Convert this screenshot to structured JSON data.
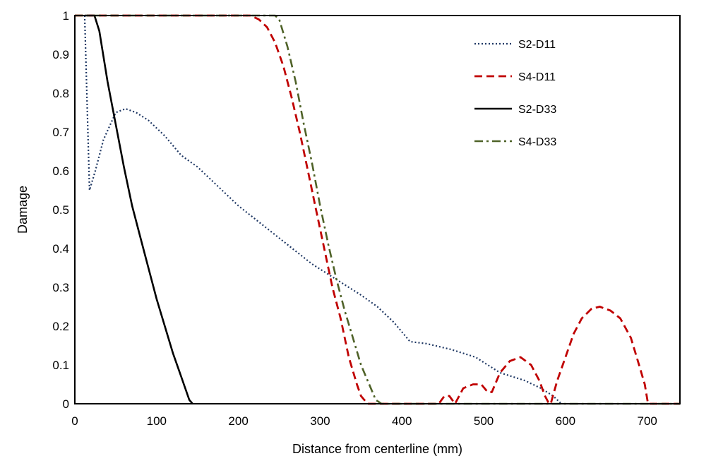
{
  "chart_data": {
    "type": "line",
    "title": "",
    "xlabel": "Distance from centerline (mm)",
    "ylabel": "Damage",
    "xlim": [
      0,
      740
    ],
    "ylim": [
      0,
      1
    ],
    "xticks": [
      0,
      100,
      200,
      300,
      400,
      500,
      600,
      700
    ],
    "yticks": [
      0,
      0.1,
      0.2,
      0.3,
      0.4,
      0.5,
      0.6,
      0.7,
      0.8,
      0.9,
      1
    ],
    "grid": false,
    "legend_position": "top-right",
    "series": [
      {
        "name": "S2-D11",
        "color": "#1f3864",
        "dash": "dotted",
        "points": [
          [
            12,
            1
          ],
          [
            18,
            0.55
          ],
          [
            25,
            0.6
          ],
          [
            35,
            0.68
          ],
          [
            50,
            0.75
          ],
          [
            62,
            0.76
          ],
          [
            75,
            0.75
          ],
          [
            90,
            0.73
          ],
          [
            110,
            0.69
          ],
          [
            130,
            0.64
          ],
          [
            150,
            0.61
          ],
          [
            175,
            0.56
          ],
          [
            200,
            0.51
          ],
          [
            230,
            0.46
          ],
          [
            260,
            0.41
          ],
          [
            290,
            0.36
          ],
          [
            320,
            0.32
          ],
          [
            350,
            0.28
          ],
          [
            370,
            0.25
          ],
          [
            390,
            0.21
          ],
          [
            410,
            0.16
          ],
          [
            430,
            0.155
          ],
          [
            460,
            0.14
          ],
          [
            490,
            0.12
          ],
          [
            520,
            0.08
          ],
          [
            550,
            0.06
          ],
          [
            570,
            0.04
          ],
          [
            585,
            0.02
          ],
          [
            595,
            0
          ]
        ]
      },
      {
        "name": "S4-D11",
        "color": "#c00000",
        "dash": "dashed",
        "points": [
          [
            0,
            1
          ],
          [
            215,
            1
          ],
          [
            225,
            0.99
          ],
          [
            235,
            0.97
          ],
          [
            245,
            0.93
          ],
          [
            255,
            0.87
          ],
          [
            265,
            0.79
          ],
          [
            275,
            0.7
          ],
          [
            285,
            0.6
          ],
          [
            295,
            0.5
          ],
          [
            305,
            0.4
          ],
          [
            315,
            0.3
          ],
          [
            325,
            0.22
          ],
          [
            335,
            0.12
          ],
          [
            345,
            0.05
          ],
          [
            350,
            0.02
          ],
          [
            358,
            0
          ],
          [
            445,
            0
          ],
          [
            452,
            0.02
          ],
          [
            458,
            0.02
          ],
          [
            465,
            0
          ],
          [
            475,
            0.04
          ],
          [
            487,
            0.05
          ],
          [
            497,
            0.05
          ],
          [
            505,
            0.03
          ],
          [
            510,
            0.03
          ],
          [
            520,
            0.08
          ],
          [
            532,
            0.11
          ],
          [
            545,
            0.12
          ],
          [
            558,
            0.1
          ],
          [
            568,
            0.06
          ],
          [
            575,
            0.02
          ],
          [
            580,
            0
          ],
          [
            582,
            0
          ],
          [
            590,
            0.06
          ],
          [
            600,
            0.12
          ],
          [
            610,
            0.18
          ],
          [
            620,
            0.22
          ],
          [
            632,
            0.245
          ],
          [
            642,
            0.25
          ],
          [
            655,
            0.24
          ],
          [
            667,
            0.22
          ],
          [
            680,
            0.17
          ],
          [
            690,
            0.1
          ],
          [
            697,
            0.05
          ],
          [
            701,
            0
          ],
          [
            740,
            0
          ]
        ]
      },
      {
        "name": "S2-D33",
        "color": "#000000",
        "dash": "solid",
        "points": [
          [
            12,
            1
          ],
          [
            24,
            1
          ],
          [
            30,
            0.96
          ],
          [
            40,
            0.83
          ],
          [
            50,
            0.72
          ],
          [
            60,
            0.61
          ],
          [
            70,
            0.51
          ],
          [
            80,
            0.43
          ],
          [
            90,
            0.35
          ],
          [
            100,
            0.27
          ],
          [
            110,
            0.2
          ],
          [
            120,
            0.13
          ],
          [
            130,
            0.07
          ],
          [
            140,
            0.01
          ],
          [
            144,
            0
          ]
        ]
      },
      {
        "name": "S4-D33",
        "color": "#4f6228",
        "dash": "dashdot",
        "points": [
          [
            0,
            1
          ],
          [
            245,
            1
          ],
          [
            250,
            0.99
          ],
          [
            260,
            0.92
          ],
          [
            270,
            0.83
          ],
          [
            280,
            0.72
          ],
          [
            290,
            0.62
          ],
          [
            300,
            0.51
          ],
          [
            310,
            0.41
          ],
          [
            320,
            0.32
          ],
          [
            330,
            0.24
          ],
          [
            340,
            0.17
          ],
          [
            350,
            0.1
          ],
          [
            360,
            0.05
          ],
          [
            368,
            0.01
          ],
          [
            375,
            0
          ],
          [
            740,
            0
          ]
        ]
      }
    ]
  }
}
